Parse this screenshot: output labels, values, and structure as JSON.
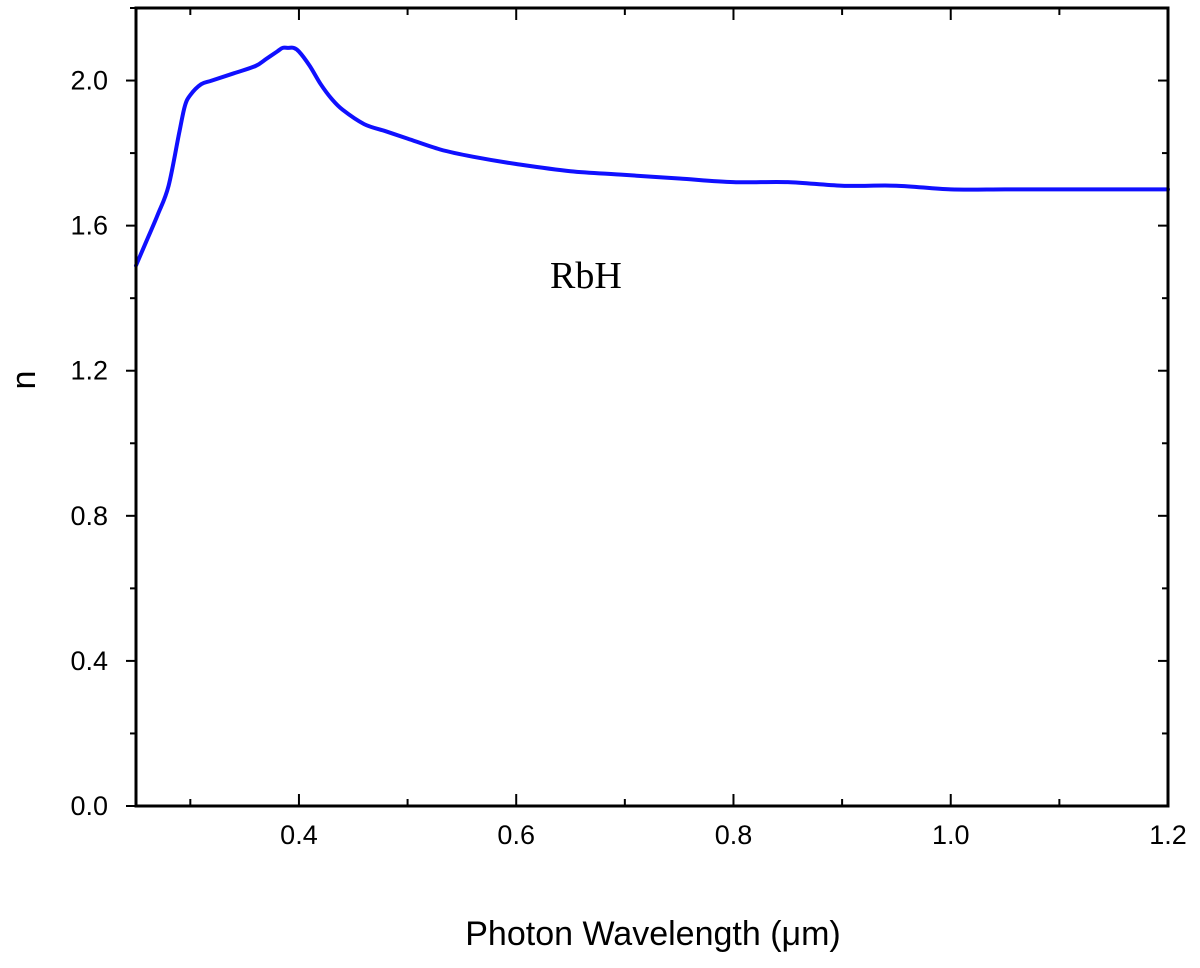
{
  "chart_data": {
    "type": "line",
    "title": "",
    "xlabel": "Photon Wavelength (μm)",
    "ylabel": "n",
    "xlim": [
      0.25,
      1.2
    ],
    "ylim": [
      0.0,
      2.2
    ],
    "x_ticks": [
      0.4,
      0.6,
      0.8,
      1.0,
      1.2
    ],
    "x_tick_labels": [
      "0.4",
      "0.6",
      "0.8",
      "1.0",
      "1.2"
    ],
    "y_ticks": [
      0.0,
      0.4,
      0.8,
      1.2,
      1.6,
      2.0
    ],
    "y_tick_labels": [
      "0.0",
      "0.4",
      "0.8",
      "1.2",
      "1.6",
      "2.0"
    ],
    "grid": false,
    "annotation": "RbH",
    "series": [
      {
        "color": "#1010ff",
        "x": [
          0.25,
          0.26,
          0.27,
          0.28,
          0.29,
          0.295,
          0.3,
          0.31,
          0.32,
          0.34,
          0.36,
          0.37,
          0.38,
          0.385,
          0.39,
          0.395,
          0.4,
          0.41,
          0.42,
          0.43,
          0.44,
          0.46,
          0.48,
          0.5,
          0.53,
          0.56,
          0.6,
          0.65,
          0.7,
          0.75,
          0.8,
          0.85,
          0.9,
          0.95,
          1.0,
          1.05,
          1.1,
          1.15,
          1.2
        ],
        "y": [
          1.49,
          1.56,
          1.63,
          1.71,
          1.86,
          1.93,
          1.96,
          1.99,
          2.0,
          2.02,
          2.04,
          2.06,
          2.08,
          2.09,
          2.09,
          2.09,
          2.08,
          2.04,
          1.99,
          1.95,
          1.92,
          1.88,
          1.86,
          1.84,
          1.81,
          1.79,
          1.77,
          1.75,
          1.74,
          1.73,
          1.72,
          1.72,
          1.71,
          1.71,
          1.7,
          1.7,
          1.7,
          1.7,
          1.7
        ]
      }
    ]
  }
}
